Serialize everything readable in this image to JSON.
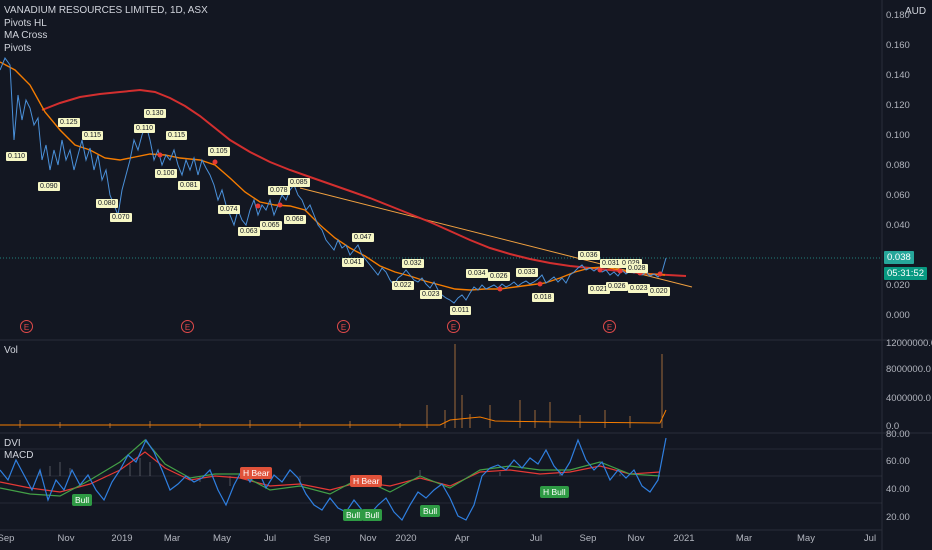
{
  "header": {
    "symbol_line": "VANADIUM RESOURCES LIMITED, 1D, ASX",
    "indicators": [
      "Pivots HL",
      "MA Cross",
      "Pivots"
    ]
  },
  "currency": "AUD",
  "price_axis": [
    "0.180",
    "0.160",
    "0.140",
    "0.120",
    "0.100",
    "0.080",
    "0.060",
    "0.040",
    "0.020",
    "0.000"
  ],
  "last_price": "0.038",
  "countdown": "05:31:52",
  "volume_pane": {
    "label": "Vol",
    "axis": [
      "12000000.0",
      "8000000.0",
      "4000000.0",
      "0.0"
    ]
  },
  "dvi_pane": {
    "labels": [
      "DVI",
      "MACD"
    ],
    "axis": [
      "80.00",
      "60.00",
      "40.00",
      "20.00"
    ]
  },
  "time_axis": [
    "Sep",
    "Nov",
    "2019",
    "Mar",
    "May",
    "Jul",
    "Sep",
    "Nov",
    "2020",
    "Apr",
    "Jul",
    "Sep",
    "Nov",
    "2021",
    "Mar",
    "May",
    "Jul"
  ],
  "earnings_marker": "E",
  "signals": [
    "H Bear",
    "H Bear",
    "Bull",
    "Bull",
    "Bull",
    "Bull",
    "H Bull"
  ],
  "pivot_labels": [
    "0.110",
    "0.130",
    "0.125",
    "0.115",
    "0.090",
    "0.070",
    "0.080",
    "0.100",
    "0.110",
    "0.115",
    "0.105",
    "0.081",
    "0.074",
    "0.063",
    "0.078",
    "0.065",
    "0.068",
    "0.085",
    "0.047",
    "0.041",
    "0.032",
    "0.022",
    "0.023",
    "0.011",
    "0.034",
    "0.026",
    "0.033",
    "0.018",
    "0.036",
    "0.031",
    "0.029",
    "0.021",
    "0.028",
    "0.026",
    "0.023",
    "0.020"
  ],
  "colors": {
    "background": "#131722",
    "ma_long": "#d32f2f",
    "ma_short": "#f57c00",
    "price": "#4a90d9",
    "trendline": "#f0a040",
    "last_price_tag": "#26a69a",
    "countdown_tag": "#089981"
  }
}
